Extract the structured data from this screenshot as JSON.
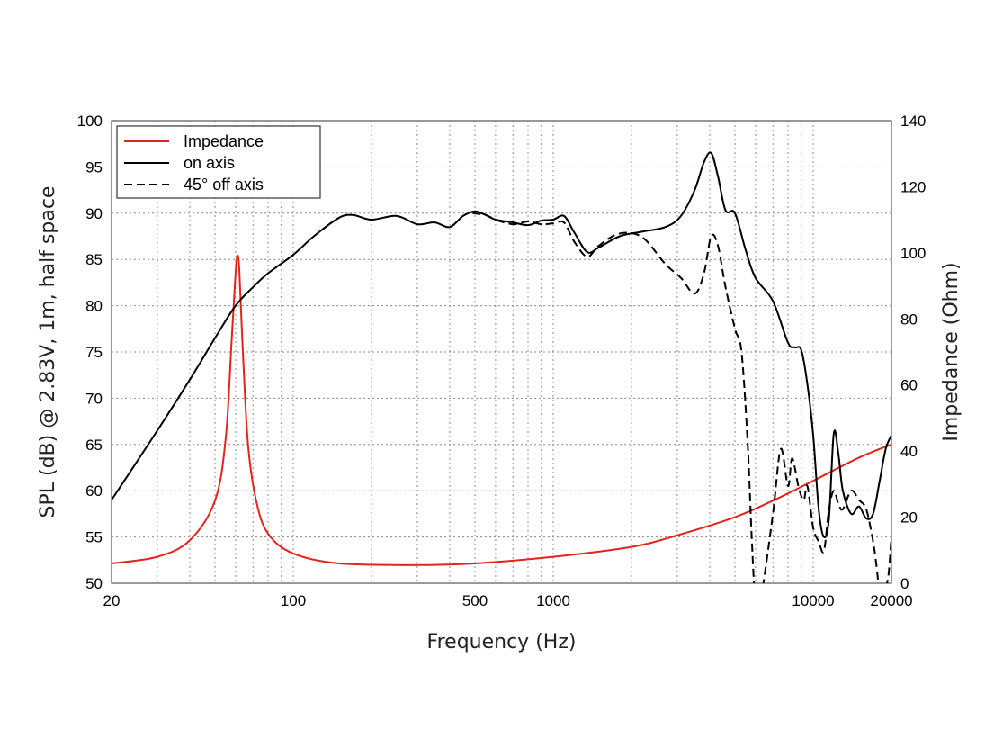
{
  "chart_data": {
    "type": "line",
    "xlabel": "Frequency (Hz)",
    "ylabel": "SPL (dB) @ 2.83V, 1m, half space",
    "y2label": "Impedance (Ohm)",
    "x_scale": "log",
    "xlim": [
      20,
      20000
    ],
    "ylim": [
      50,
      100
    ],
    "y2lim": [
      0,
      140
    ],
    "grid": true,
    "legend_position": "top-left",
    "x_ticks": [
      "20",
      "100",
      "500",
      "1000",
      "10000",
      "20000"
    ],
    "y_ticks": [
      "50",
      "55",
      "60",
      "65",
      "70",
      "75",
      "80",
      "85",
      "90",
      "95",
      "100"
    ],
    "y2_ticks": [
      "0",
      "20",
      "40",
      "60",
      "80",
      "100",
      "120",
      "140"
    ],
    "series": [
      {
        "name": "Impedance",
        "axis": "right",
        "color": "#e3241b",
        "dash": "solid",
        "x": [
          20,
          30,
          40,
          50,
          55,
          58,
          60,
          61,
          62,
          64,
          67,
          72,
          80,
          100,
          150,
          300,
          500,
          1000,
          2000,
          3000,
          5000,
          7000,
          10000,
          15000,
          20000
        ],
        "y": [
          6,
          8,
          13,
          25,
          44,
          74,
          94,
          99,
          95,
          70,
          42,
          25,
          15,
          9,
          6,
          5.5,
          6,
          8,
          11,
          14.5,
          20,
          25,
          31,
          38,
          42
        ]
      },
      {
        "name": "on axis",
        "axis": "left",
        "color": "#000000",
        "dash": "solid",
        "x": [
          20,
          30,
          40,
          50,
          60,
          70,
          80,
          100,
          120,
          150,
          170,
          200,
          250,
          300,
          350,
          400,
          450,
          500,
          550,
          600,
          700,
          800,
          900,
          1000,
          1100,
          1200,
          1350,
          1500,
          1800,
          2200,
          2700,
          3100,
          3500,
          3800,
          4050,
          4300,
          4600,
          5000,
          5500,
          6000,
          7000,
          8000,
          8500,
          9000,
          9500,
          10000,
          10500,
          11000,
          11500,
          12000,
          12500,
          13000,
          14000,
          15000,
          16000,
          17000,
          18000,
          19000,
          20000
        ],
        "y": [
          59,
          66.5,
          72,
          76.5,
          80,
          82,
          83.5,
          85.5,
          87.5,
          89.5,
          89.8,
          89.3,
          89.7,
          88.8,
          89,
          88.5,
          89.7,
          90.2,
          89.8,
          89.3,
          89,
          88.7,
          89.2,
          89.3,
          89.7,
          88,
          85.8,
          86.3,
          87.5,
          88,
          88.5,
          89.7,
          92.5,
          95.5,
          96.5,
          94,
          90.3,
          90,
          86,
          83,
          80.5,
          76,
          75.5,
          75.2,
          71.5,
          66,
          58,
          55,
          57,
          66.2,
          64,
          60,
          57.5,
          58.3,
          57,
          57.5,
          61,
          64.5,
          66
        ]
      },
      {
        "name": "45° off axis",
        "axis": "left",
        "color": "#000000",
        "dash": "dashed",
        "x": [
          490,
          550,
          600,
          700,
          800,
          900,
          1000,
          1100,
          1200,
          1350,
          1500,
          1800,
          2200,
          2700,
          3100,
          3500,
          3800,
          4050,
          4300,
          4600,
          5000,
          5300,
          5600,
          5800,
          6000,
          6300,
          7000,
          7500,
          8000,
          8300,
          8800,
          9200,
          9500,
          10000,
          10500,
          11000,
          11500,
          12000,
          12500,
          13000,
          14000,
          15000,
          16000,
          17000,
          17500,
          18000,
          18500,
          19000,
          19500,
          20000
        ],
        "y": [
          90,
          89.8,
          89.3,
          88.8,
          89.1,
          88.8,
          88.9,
          89,
          87,
          85.3,
          86.5,
          87.8,
          87.4,
          84.5,
          83,
          81.3,
          83.5,
          87.5,
          86.5,
          82,
          77.5,
          75,
          65,
          55,
          48,
          48.5,
          57.5,
          64.5,
          60.5,
          63.5,
          60.3,
          59,
          60.5,
          56,
          54.5,
          53.5,
          58,
          60,
          58.6,
          58,
          60,
          59,
          58,
          54.5,
          52,
          49,
          48.5,
          49.5,
          51,
          55
        ]
      }
    ]
  }
}
